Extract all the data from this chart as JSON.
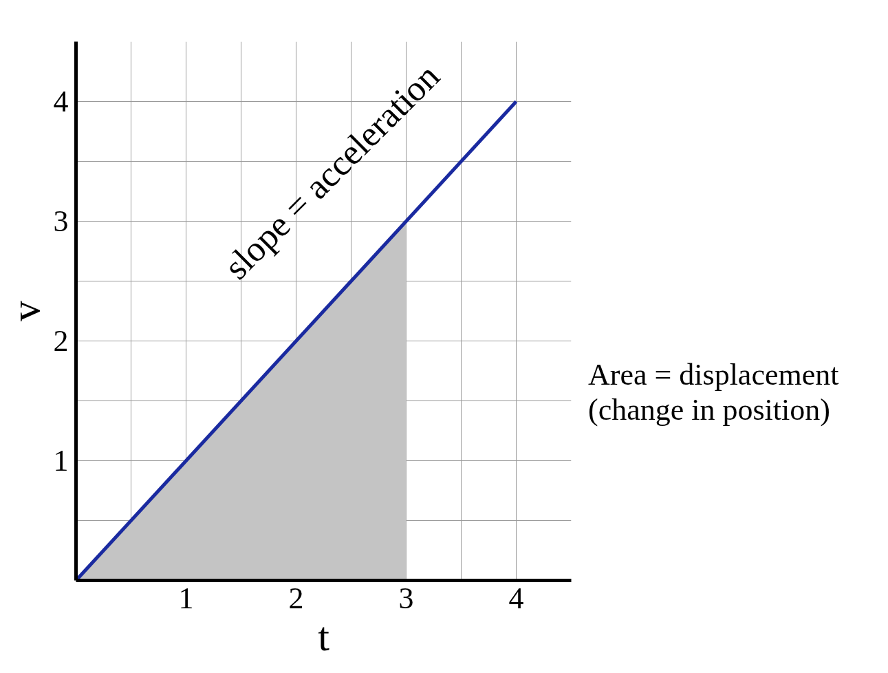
{
  "chart_data": {
    "type": "line",
    "xlabel": "t",
    "ylabel": "v",
    "xlim": [
      0,
      4.5
    ],
    "ylim": [
      0,
      4.5
    ],
    "xticks": [
      {
        "value": 0.5,
        "label": null
      },
      1,
      {
        "value": 1.5,
        "label": null
      },
      2,
      {
        "value": 2.5,
        "label": null
      },
      3,
      {
        "value": 3.5,
        "label": null
      },
      4
    ],
    "yticks": [
      {
        "value": 0.5,
        "label": null
      },
      1,
      {
        "value": 1.5,
        "label": null
      },
      2,
      {
        "value": 2.5,
        "label": null
      },
      3,
      {
        "value": 3.5,
        "label": null
      },
      4
    ],
    "grid": true,
    "marker": "none",
    "line_style": "solid",
    "series": [
      {
        "type": "area",
        "color": "#c4c4c4",
        "x": [
          0,
          3
        ],
        "values": [
          0,
          3
        ]
      },
      {
        "color": "#1a2aa0",
        "x": [
          0,
          4
        ],
        "values": [
          0,
          4
        ]
      }
    ],
    "annotations": [
      "slope = acceleration",
      "Area = displacement\n(change in position)"
    ]
  }
}
